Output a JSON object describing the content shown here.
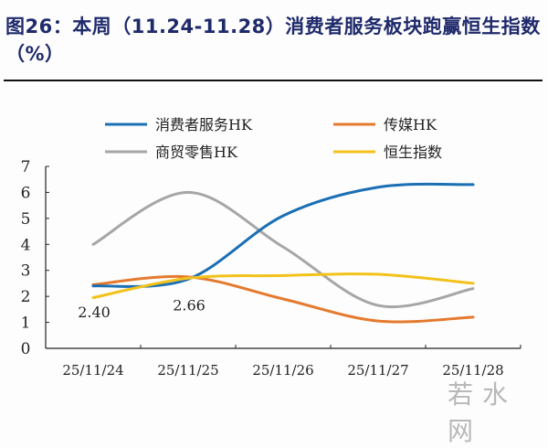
{
  "title": {
    "line1": "图26：本周（11.24-11.28）消费者服务板块跑赢恒生指数",
    "line2": "（%）"
  },
  "watermark": "若水网",
  "colors": {
    "consumer": "#1a6fb5",
    "media": "#e57a2e",
    "retail": "#a6a6a6",
    "hsi": "#f2c21b"
  },
  "chart_data": {
    "type": "line",
    "title": "本周（11.24-11.28）消费者服务板块跑赢恒生指数（%）",
    "xlabel": "",
    "ylabel": "%",
    "categories": [
      "25/11/24",
      "25/11/25",
      "25/11/26",
      "25/11/27",
      "25/11/28"
    ],
    "ylim": [
      0,
      7
    ],
    "yticks": [
      0,
      1,
      2,
      3,
      4,
      5,
      6,
      7
    ],
    "grid": false,
    "legend_position": "top",
    "series": [
      {
        "name": "消费者服务HK",
        "color": "#1a6fb5",
        "values": [
          2.4,
          2.66,
          5.1,
          6.2,
          6.3
        ]
      },
      {
        "name": "传媒HK",
        "color": "#e57a2e",
        "values": [
          2.45,
          2.75,
          1.9,
          1.05,
          1.2
        ]
      },
      {
        "name": "商贸零售HK",
        "color": "#a6a6a6",
        "values": [
          4.0,
          6.0,
          3.9,
          1.65,
          2.3
        ]
      },
      {
        "name": "恒生指数",
        "color": "#f2c21b",
        "values": [
          1.95,
          2.7,
          2.8,
          2.85,
          2.5
        ]
      }
    ],
    "annotations": [
      {
        "text": "2.40",
        "x": "25/11/24",
        "series": "消费者服务HK"
      },
      {
        "text": "2.66",
        "x": "25/11/25",
        "series": "消费者服务HK"
      }
    ]
  }
}
